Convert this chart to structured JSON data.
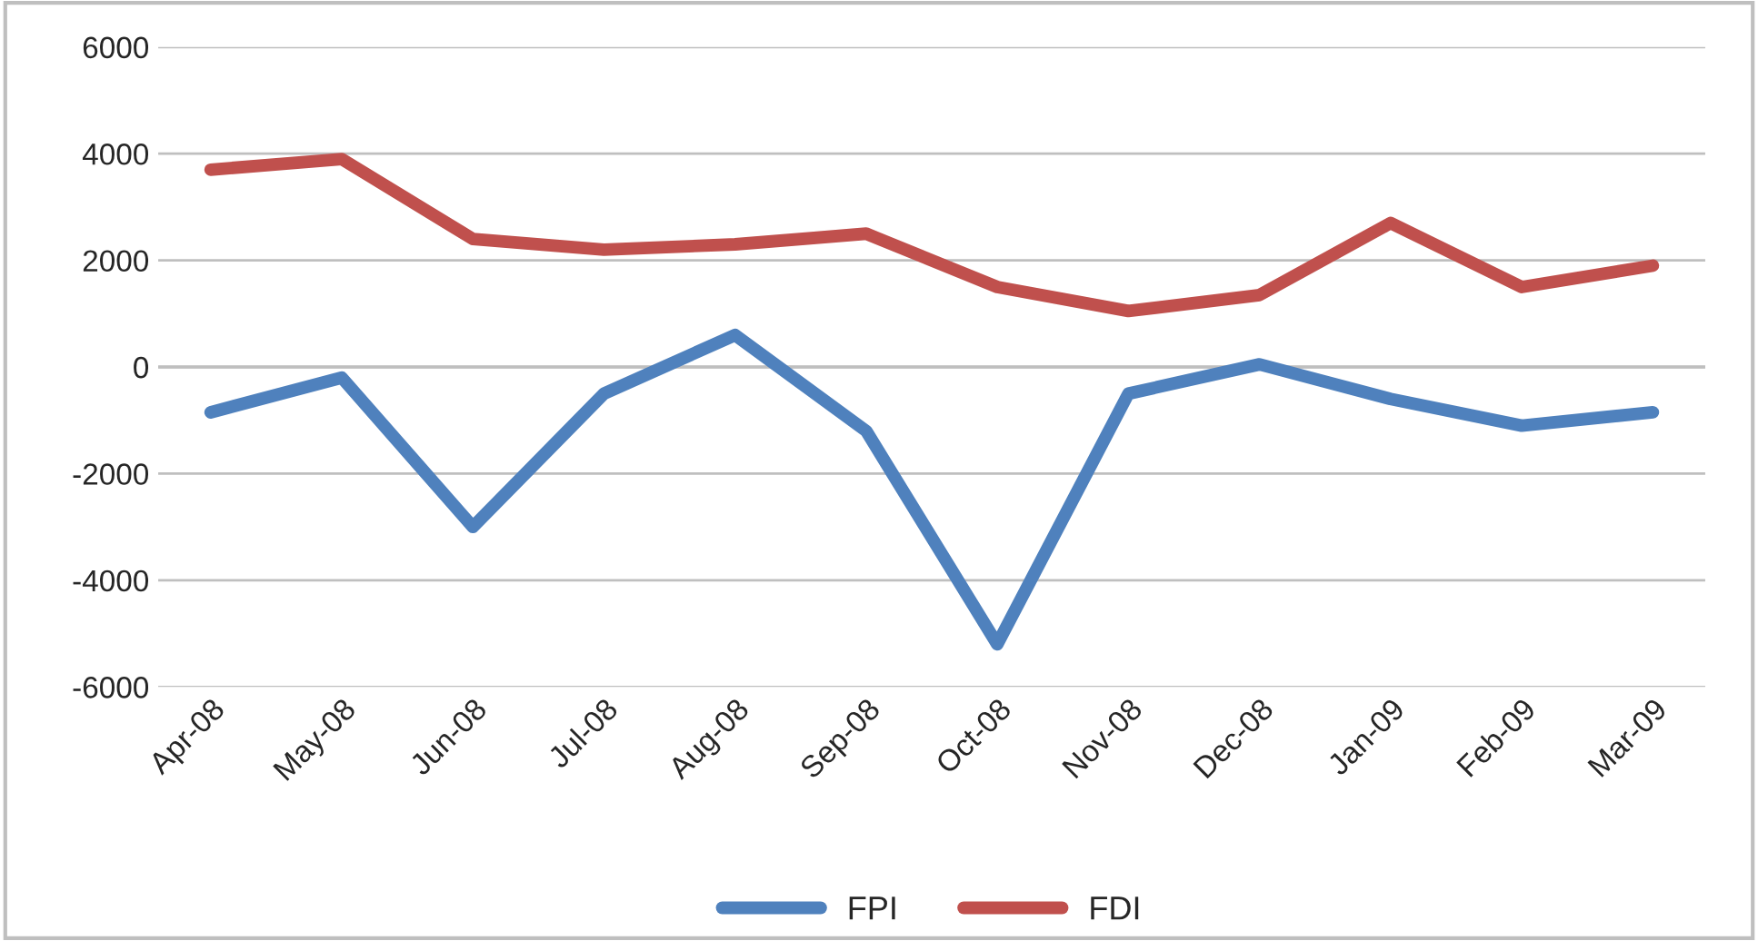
{
  "chart_data": {
    "type": "line",
    "categories": [
      "Apr-08",
      "May-08",
      "Jun-08",
      "Jul-08",
      "Aug-08",
      "Sep-08",
      "Oct-08",
      "Nov-08",
      "Dec-08",
      "Jan-09",
      "Feb-09",
      "Mar-09"
    ],
    "series": [
      {
        "name": "FPI",
        "color": "#4f81bd",
        "values": [
          -850,
          -200,
          -3000,
          -500,
          600,
          -1200,
          -5200,
          -500,
          50,
          -600,
          -1100,
          -850
        ]
      },
      {
        "name": "FDI",
        "color": "#c0504d",
        "values": [
          3700,
          3900,
          2400,
          2200,
          2300,
          2500,
          1500,
          1050,
          1350,
          2700,
          1500,
          1900
        ]
      }
    ],
    "ylim": [
      -6000,
      6000
    ],
    "yticks": [
      -6000,
      -4000,
      -2000,
      0,
      2000,
      4000,
      6000
    ],
    "grid": "y",
    "legend": "bottom",
    "marker": "none",
    "line_style": "solid"
  }
}
